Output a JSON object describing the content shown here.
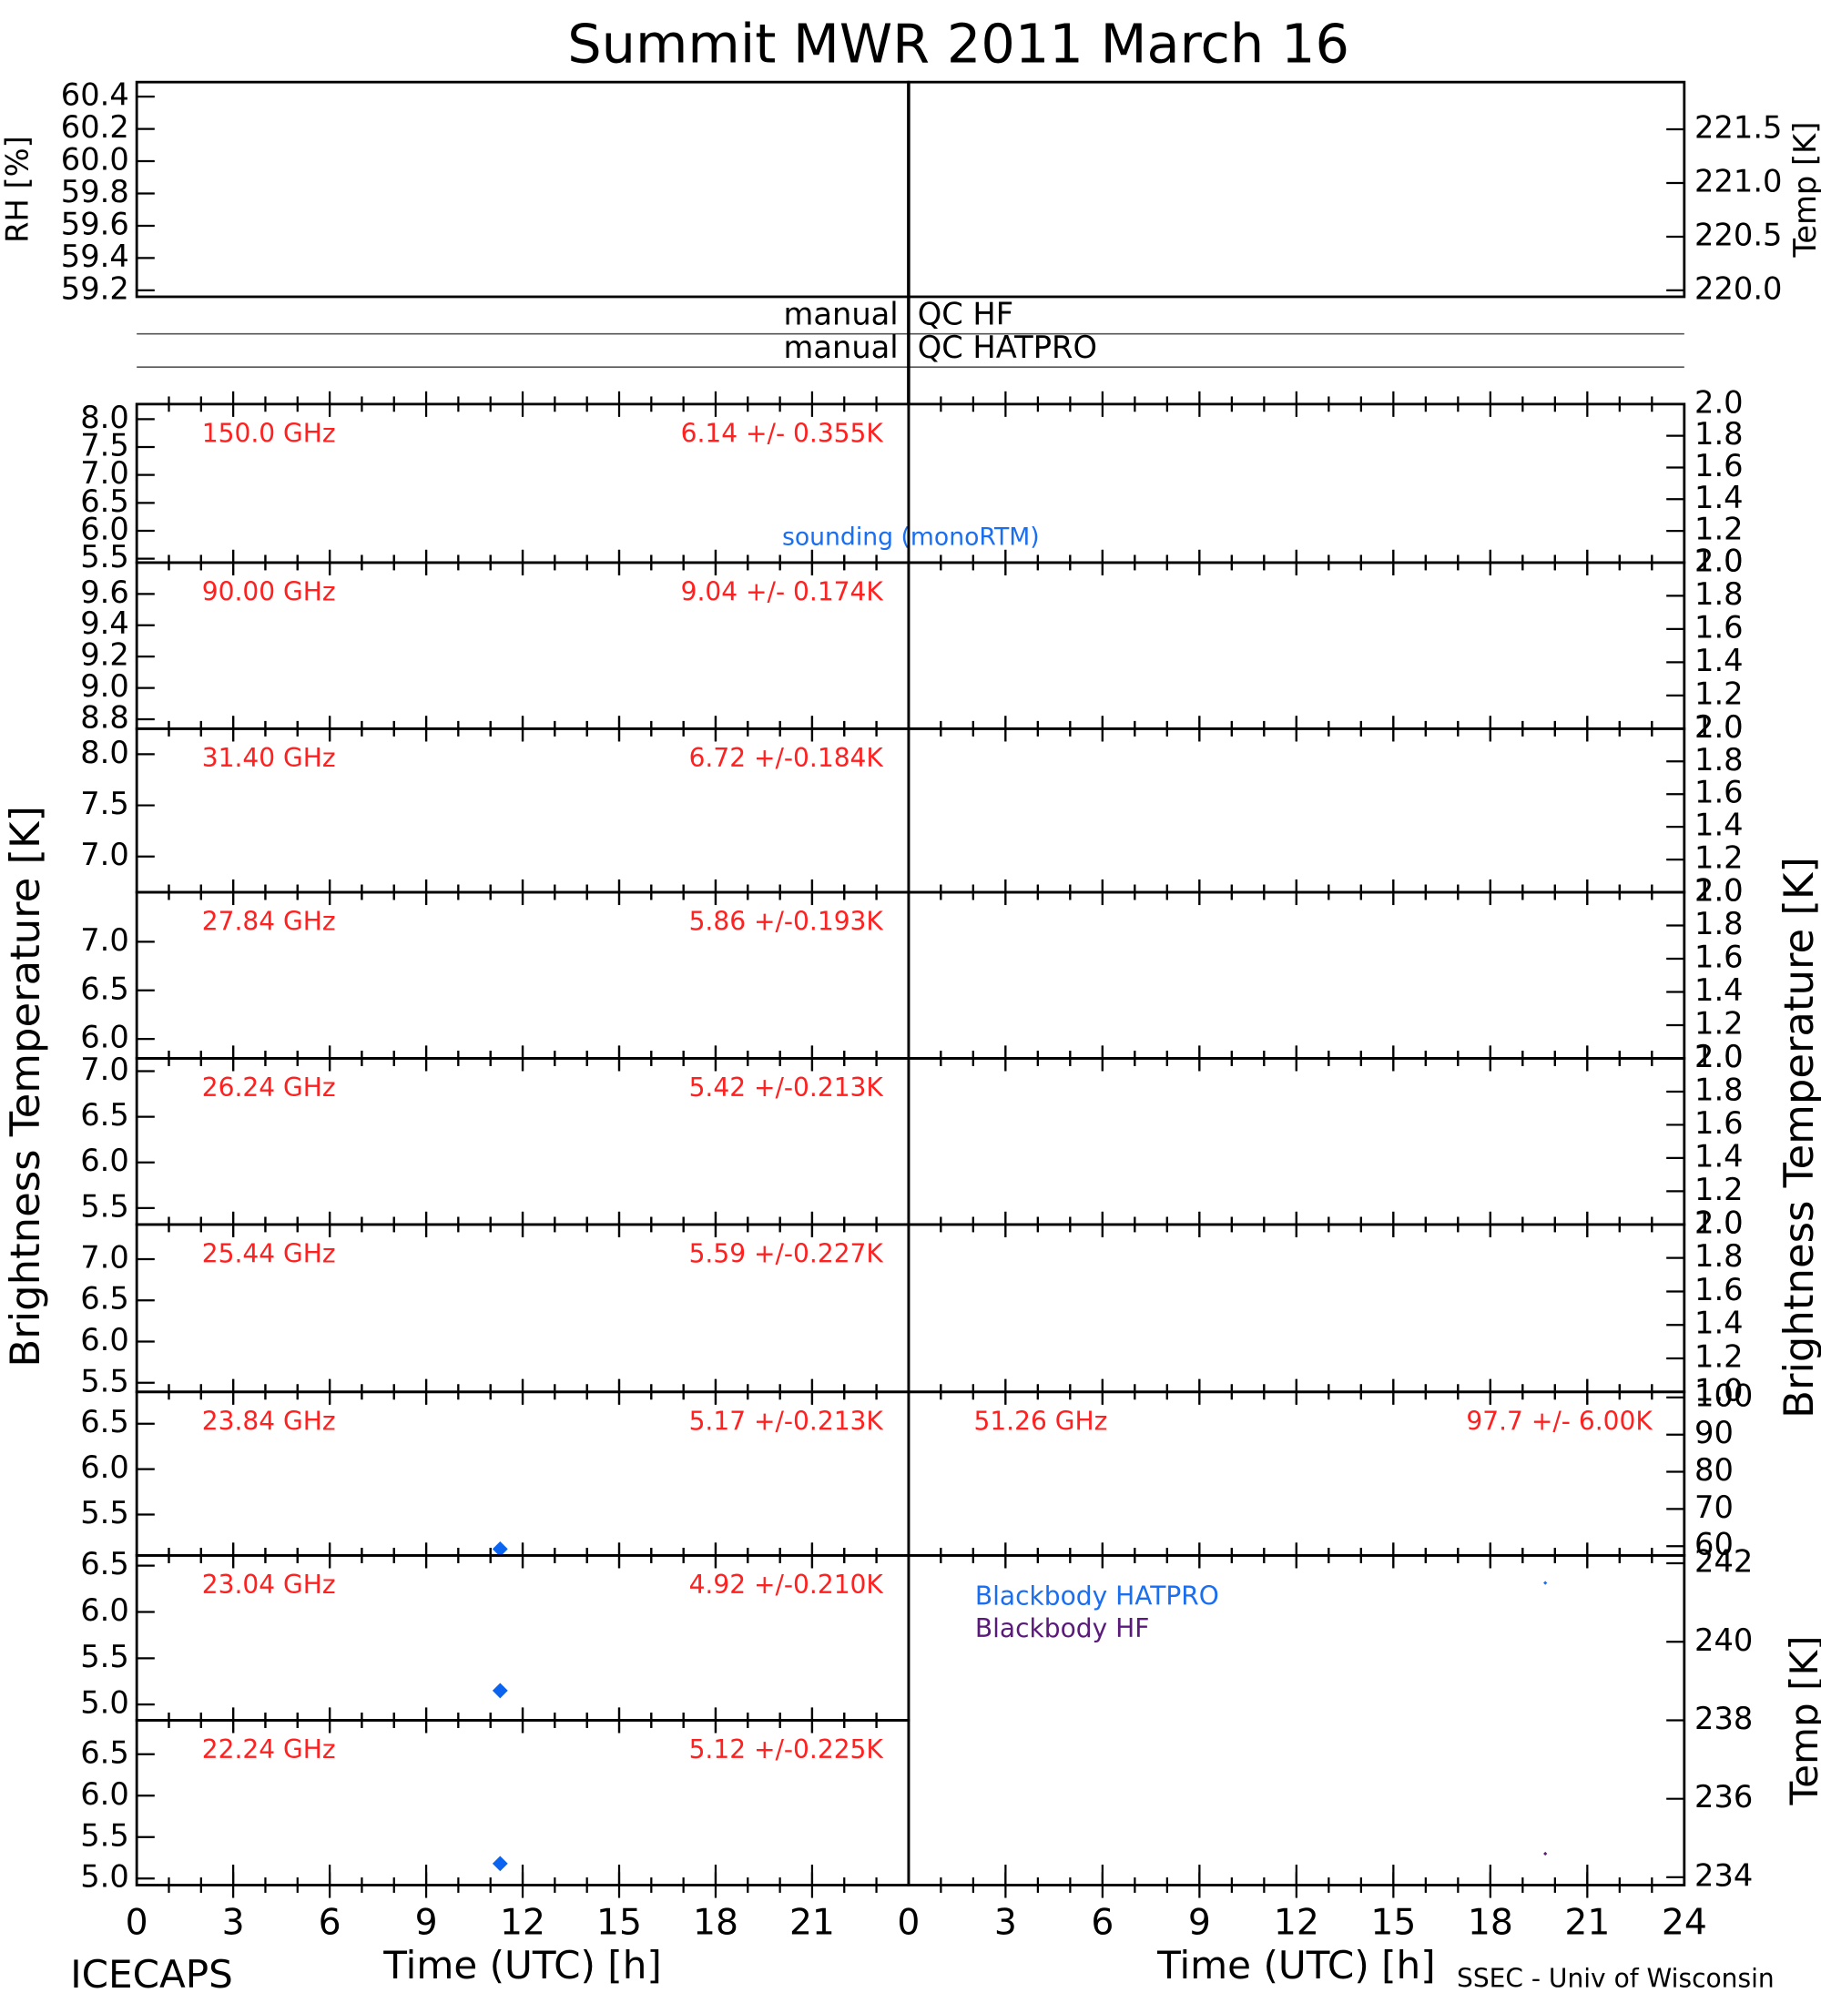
{
  "title": "Summit MWR 2011 March 16",
  "side_labels": [
    "Brightness Temperature [K]",
    "Brightness Temperature [K]"
  ],
  "qc_labels": [
    [
      "manual",
      "QC HF"
    ],
    [
      "manual",
      "QC HATPRO"
    ]
  ],
  "sounding_label": "sounding (monoRTM)",
  "footer_left": "ICECAPS",
  "footer_right": "SSEC - Univ of Wisconsin",
  "chart_data": [
    {
      "type": "scatter",
      "ylabel": "RH [%]",
      "xlim": [
        0,
        24
      ],
      "ylim": [
        59.16,
        60.49
      ],
      "yticks": [
        59.2,
        59.4,
        59.6,
        59.8,
        {
          "value": 60,
          "label": "60.0"
        },
        60.2,
        60.4
      ]
    },
    {
      "type": "scatter",
      "ylabel": "Temp [K]",
      "xlim": [
        0,
        24
      ],
      "ylim": [
        219.94,
        221.94
      ],
      "yticks": [
        {
          "value": 220,
          "label": "220.0"
        },
        220.5,
        {
          "value": 221,
          "label": "221.0"
        },
        221.5
      ]
    },
    {
      "type": "scatter",
      "annotations": [
        "150.0 GHz",
        "6.14 +/- 0.355K"
      ],
      "xlim": [
        0,
        24
      ],
      "ylim": [
        5.43,
        8.27
      ],
      "yticks": [
        5.5,
        {
          "value": 6,
          "label": "6.0"
        },
        6.5,
        {
          "value": 7,
          "label": "7.0"
        },
        7.5,
        {
          "value": 8,
          "label": "8.0"
        }
      ]
    },
    {
      "type": "scatter",
      "annotations": [
        "90.00 GHz",
        "9.04 +/- 0.174K"
      ],
      "xlim": [
        0,
        24
      ],
      "ylim": [
        8.74,
        9.8
      ],
      "yticks": [
        8.8,
        {
          "value": 9,
          "label": "9.0"
        },
        9.2,
        9.4,
        9.6
      ]
    },
    {
      "type": "scatter",
      "annotations": [
        "31.40 GHz",
        "6.72 +/-0.184K"
      ],
      "xlim": [
        0,
        24
      ],
      "ylim": [
        6.65,
        8.25
      ],
      "yticks": [
        {
          "value": 7,
          "label": "7.0"
        },
        7.5,
        {
          "value": 8,
          "label": "8.0"
        }
      ]
    },
    {
      "type": "scatter",
      "annotations": [
        "27.84 GHz",
        "5.86 +/-0.193K"
      ],
      "xlim": [
        0,
        24
      ],
      "ylim": [
        5.8,
        7.51
      ],
      "yticks": [
        {
          "value": 6,
          "label": "6.0"
        },
        6.5,
        {
          "value": 7,
          "label": "7.0"
        }
      ]
    },
    {
      "type": "scatter",
      "annotations": [
        "26.24 GHz",
        "5.42 +/-0.213K"
      ],
      "xlim": [
        0,
        24
      ],
      "ylim": [
        5.32,
        7.14
      ],
      "yticks": [
        5.5,
        {
          "value": 6,
          "label": "6.0"
        },
        6.5,
        {
          "value": 7,
          "label": "7.0"
        }
      ]
    },
    {
      "type": "scatter",
      "annotations": [
        "25.44 GHz",
        "5.59 +/-0.227K"
      ],
      "xlim": [
        0,
        24
      ],
      "ylim": [
        5.39,
        7.42
      ],
      "yticks": [
        5.5,
        {
          "value": 6,
          "label": "6.0"
        },
        6.5,
        {
          "value": 7,
          "label": "7.0"
        }
      ]
    },
    {
      "type": "scatter",
      "annotations": [
        "23.84 GHz",
        "5.17 +/-0.213K"
      ],
      "xlim": [
        0,
        24
      ],
      "ylim": [
        5.05,
        6.85
      ],
      "yticks": [
        5.5,
        {
          "value": 6,
          "label": "6.0"
        },
        6.5
      ],
      "series": [
        {
          "color": "#0a64f0",
          "x": [
            11.3
          ],
          "values": [
            5.12
          ]
        }
      ]
    },
    {
      "type": "scatter",
      "annotations": [
        "23.04 GHz",
        "4.92 +/-0.210K"
      ],
      "xlim": [
        0,
        24
      ],
      "ylim": [
        4.83,
        6.61
      ],
      "yticks": [
        {
          "value": 5,
          "label": "5.0"
        },
        5.5,
        {
          "value": 6,
          "label": "6.0"
        },
        6.5
      ],
      "series": [
        {
          "color": "#0a64f0",
          "x": [
            11.3
          ],
          "values": [
            5.15
          ]
        }
      ]
    },
    {
      "type": "scatter",
      "annotations": [
        "22.24 GHz",
        "5.12 +/-0.225K"
      ],
      "xlabel": "Time (UTC) [h]",
      "xlim": [
        0,
        24
      ],
      "xticks": [
        0,
        3,
        6,
        9,
        12,
        15,
        18,
        21
      ],
      "ylim": [
        4.92,
        6.91
      ],
      "yticks": [
        {
          "value": 5,
          "label": "5.0"
        },
        5.5,
        {
          "value": 6,
          "label": "6.0"
        },
        6.5
      ],
      "series": [
        {
          "color": "#0a64f0",
          "x": [
            11.3
          ],
          "values": [
            5.18
          ]
        }
      ]
    },
    {
      "type": "scatter",
      "xlim": [
        0,
        24
      ],
      "ylim": [
        1,
        2
      ],
      "yticks": [
        {
          "value": 1,
          "label": "1.0"
        },
        1.2,
        1.4,
        1.6,
        1.8,
        {
          "value": 2,
          "label": "2.0"
        }
      ]
    },
    {
      "type": "scatter",
      "xlim": [
        0,
        24
      ],
      "ylim": [
        1,
        2
      ],
      "yticks": [
        {
          "value": 1,
          "label": "1.0"
        },
        1.2,
        1.4,
        1.6,
        1.8,
        {
          "value": 2,
          "label": "2.0"
        }
      ]
    },
    {
      "type": "scatter",
      "xlim": [
        0,
        24
      ],
      "ylim": [
        1,
        2
      ],
      "yticks": [
        {
          "value": 1,
          "label": "1.0"
        },
        1.2,
        1.4,
        1.6,
        1.8,
        {
          "value": 2,
          "label": "2.0"
        }
      ]
    },
    {
      "type": "scatter",
      "xlim": [
        0,
        24
      ],
      "ylim": [
        1,
        2
      ],
      "yticks": [
        {
          "value": 1,
          "label": "1.0"
        },
        1.2,
        1.4,
        1.6,
        1.8,
        {
          "value": 2,
          "label": "2.0"
        }
      ]
    },
    {
      "type": "scatter",
      "xlim": [
        0,
        24
      ],
      "ylim": [
        1,
        2
      ],
      "yticks": [
        {
          "value": 1,
          "label": "1.0"
        },
        1.2,
        1.4,
        1.6,
        1.8,
        {
          "value": 2,
          "label": "2.0"
        }
      ]
    },
    {
      "type": "scatter",
      "xlim": [
        0,
        24
      ],
      "ylim": [
        1,
        2
      ],
      "yticks": [
        {
          "value": 1,
          "label": "1.0"
        },
        1.2,
        1.4,
        1.6,
        1.8,
        {
          "value": 2,
          "label": "2.0"
        }
      ]
    },
    {
      "type": "scatter",
      "annotations": [
        "51.26 GHz",
        "97.7 +/- 6.00K"
      ],
      "xlim": [
        0,
        24
      ],
      "ylim": [
        57.5,
        101.5
      ],
      "yticks": [
        60,
        70,
        80,
        90,
        100
      ]
    },
    {
      "type": "scatter",
      "ylabel": "Temp [K]",
      "xlabel": "Time (UTC) [h]",
      "xlim": [
        0,
        24
      ],
      "xticks": [
        0,
        3,
        6,
        9,
        12,
        15,
        18,
        21,
        24
      ],
      "ylim": [
        233.8,
        242.2
      ],
      "yticks": [
        234,
        236,
        238,
        240,
        242
      ],
      "series": [
        {
          "name": "Blackbody HATPRO",
          "color": "#1a6ef0",
          "x": [
            19.7
          ],
          "values": [
            241.5
          ]
        },
        {
          "name": "Blackbody HF",
          "color": "#5a1a7a",
          "x": [
            19.7
          ],
          "values": [
            234.6
          ]
        }
      ]
    }
  ]
}
